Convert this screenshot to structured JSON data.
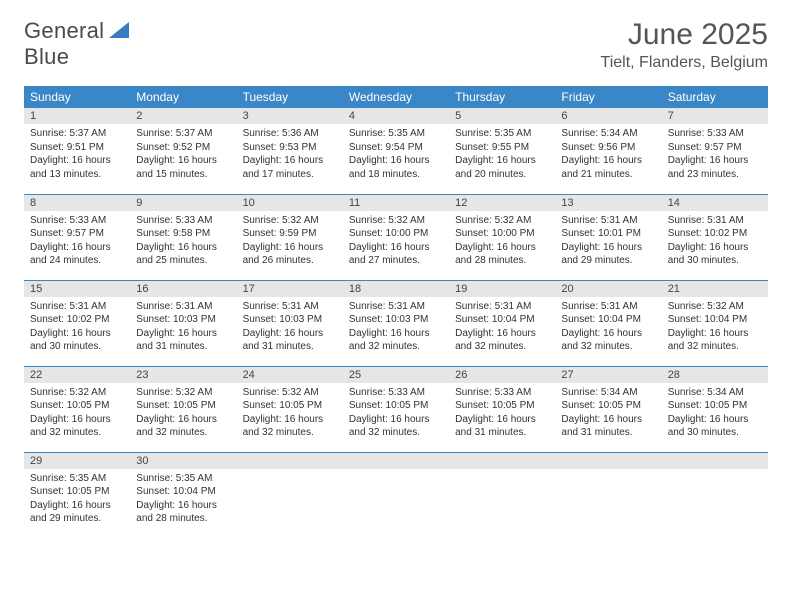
{
  "brand": {
    "line1": "General",
    "line2": "Blue"
  },
  "title": "June 2025",
  "location": "Tielt, Flanders, Belgium",
  "colors": {
    "header_bg": "#3a87c7",
    "header_text": "#ffffff",
    "daynum_bg": "#e6e6e6",
    "row_border": "#3a87c7",
    "body_text": "#333333",
    "brand_gray": "#4a4a4a",
    "brand_blue": "#3a7ac0"
  },
  "typography": {
    "title_fontsize": 30,
    "location_fontsize": 16,
    "weekday_fontsize": 12,
    "daynum_fontsize": 11,
    "body_fontsize": 10
  },
  "weekdays": [
    "Sunday",
    "Monday",
    "Tuesday",
    "Wednesday",
    "Thursday",
    "Friday",
    "Saturday"
  ],
  "weeks": [
    [
      {
        "n": "1",
        "sr": "5:37 AM",
        "ss": "9:51 PM",
        "dl": "16 hours and 13 minutes."
      },
      {
        "n": "2",
        "sr": "5:37 AM",
        "ss": "9:52 PM",
        "dl": "16 hours and 15 minutes."
      },
      {
        "n": "3",
        "sr": "5:36 AM",
        "ss": "9:53 PM",
        "dl": "16 hours and 17 minutes."
      },
      {
        "n": "4",
        "sr": "5:35 AM",
        "ss": "9:54 PM",
        "dl": "16 hours and 18 minutes."
      },
      {
        "n": "5",
        "sr": "5:35 AM",
        "ss": "9:55 PM",
        "dl": "16 hours and 20 minutes."
      },
      {
        "n": "6",
        "sr": "5:34 AM",
        "ss": "9:56 PM",
        "dl": "16 hours and 21 minutes."
      },
      {
        "n": "7",
        "sr": "5:33 AM",
        "ss": "9:57 PM",
        "dl": "16 hours and 23 minutes."
      }
    ],
    [
      {
        "n": "8",
        "sr": "5:33 AM",
        "ss": "9:57 PM",
        "dl": "16 hours and 24 minutes."
      },
      {
        "n": "9",
        "sr": "5:33 AM",
        "ss": "9:58 PM",
        "dl": "16 hours and 25 minutes."
      },
      {
        "n": "10",
        "sr": "5:32 AM",
        "ss": "9:59 PM",
        "dl": "16 hours and 26 minutes."
      },
      {
        "n": "11",
        "sr": "5:32 AM",
        "ss": "10:00 PM",
        "dl": "16 hours and 27 minutes."
      },
      {
        "n": "12",
        "sr": "5:32 AM",
        "ss": "10:00 PM",
        "dl": "16 hours and 28 minutes."
      },
      {
        "n": "13",
        "sr": "5:31 AM",
        "ss": "10:01 PM",
        "dl": "16 hours and 29 minutes."
      },
      {
        "n": "14",
        "sr": "5:31 AM",
        "ss": "10:02 PM",
        "dl": "16 hours and 30 minutes."
      }
    ],
    [
      {
        "n": "15",
        "sr": "5:31 AM",
        "ss": "10:02 PM",
        "dl": "16 hours and 30 minutes."
      },
      {
        "n": "16",
        "sr": "5:31 AM",
        "ss": "10:03 PM",
        "dl": "16 hours and 31 minutes."
      },
      {
        "n": "17",
        "sr": "5:31 AM",
        "ss": "10:03 PM",
        "dl": "16 hours and 31 minutes."
      },
      {
        "n": "18",
        "sr": "5:31 AM",
        "ss": "10:03 PM",
        "dl": "16 hours and 32 minutes."
      },
      {
        "n": "19",
        "sr": "5:31 AM",
        "ss": "10:04 PM",
        "dl": "16 hours and 32 minutes."
      },
      {
        "n": "20",
        "sr": "5:31 AM",
        "ss": "10:04 PM",
        "dl": "16 hours and 32 minutes."
      },
      {
        "n": "21",
        "sr": "5:32 AM",
        "ss": "10:04 PM",
        "dl": "16 hours and 32 minutes."
      }
    ],
    [
      {
        "n": "22",
        "sr": "5:32 AM",
        "ss": "10:05 PM",
        "dl": "16 hours and 32 minutes."
      },
      {
        "n": "23",
        "sr": "5:32 AM",
        "ss": "10:05 PM",
        "dl": "16 hours and 32 minutes."
      },
      {
        "n": "24",
        "sr": "5:32 AM",
        "ss": "10:05 PM",
        "dl": "16 hours and 32 minutes."
      },
      {
        "n": "25",
        "sr": "5:33 AM",
        "ss": "10:05 PM",
        "dl": "16 hours and 32 minutes."
      },
      {
        "n": "26",
        "sr": "5:33 AM",
        "ss": "10:05 PM",
        "dl": "16 hours and 31 minutes."
      },
      {
        "n": "27",
        "sr": "5:34 AM",
        "ss": "10:05 PM",
        "dl": "16 hours and 31 minutes."
      },
      {
        "n": "28",
        "sr": "5:34 AM",
        "ss": "10:05 PM",
        "dl": "16 hours and 30 minutes."
      }
    ],
    [
      {
        "n": "29",
        "sr": "5:35 AM",
        "ss": "10:05 PM",
        "dl": "16 hours and 29 minutes."
      },
      {
        "n": "30",
        "sr": "5:35 AM",
        "ss": "10:04 PM",
        "dl": "16 hours and 28 minutes."
      },
      null,
      null,
      null,
      null,
      null
    ]
  ],
  "labels": {
    "sunrise": "Sunrise:",
    "sunset": "Sunset:",
    "daylight": "Daylight:"
  }
}
